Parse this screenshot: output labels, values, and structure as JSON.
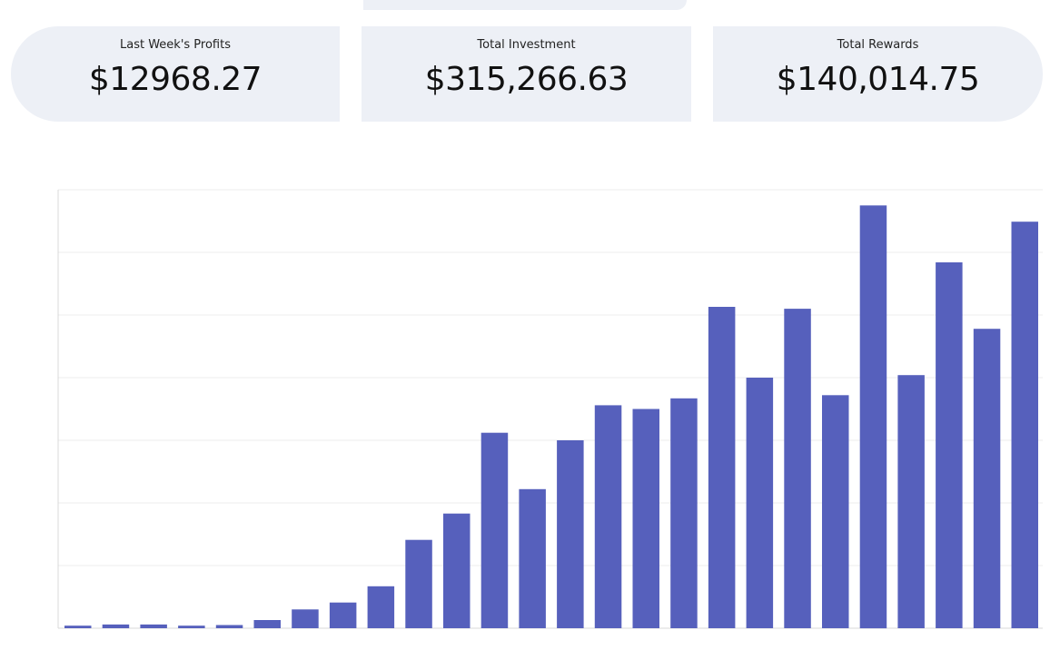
{
  "stats": {
    "last_week_label": "Last Week's Profits",
    "last_week_value": "$12968.27",
    "total_investment_label": "Total Investment",
    "total_investment_value": "$315,266.63",
    "total_rewards_label": "Total Rewards",
    "total_rewards_value": "$140,014.75"
  },
  "colors": {
    "card_bg": "#edf0f6",
    "bar": "#5660bc",
    "grid": "#ececec",
    "axis": "#d8d8d8"
  },
  "chart_data": {
    "type": "bar",
    "title": "",
    "xlabel": "",
    "ylabel": "",
    "grid": true,
    "ylim": [
      0,
      7
    ],
    "values": [
      0.04,
      0.06,
      0.06,
      0.04,
      0.05,
      0.13,
      0.3,
      0.41,
      0.67,
      1.41,
      1.83,
      3.12,
      2.22,
      3.0,
      3.56,
      3.5,
      3.67,
      5.13,
      4.0,
      5.1,
      3.72,
      6.75,
      4.04,
      5.84,
      4.78,
      6.49
    ]
  }
}
